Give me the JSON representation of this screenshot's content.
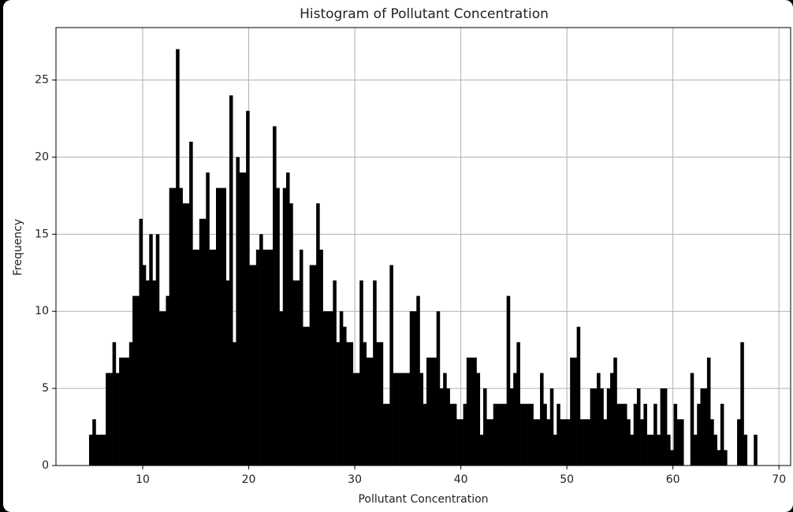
{
  "chart_data": {
    "type": "histogram",
    "title": "Histogram of Pollutant Concentration",
    "xlabel": "Pollutant Concentration",
    "ylabel": "Frequency",
    "color": "#000000",
    "grid": true,
    "xlim": [
      1.82,
      71.1
    ],
    "ylim": [
      0,
      28.4
    ],
    "xticks": [
      10,
      20,
      30,
      40,
      50,
      60,
      70
    ],
    "yticks": [
      0,
      5,
      10,
      15,
      20,
      25
    ],
    "bins": [
      4.94,
      5.255,
      5.57,
      5.885,
      6.2,
      6.515,
      6.83,
      7.145,
      7.46,
      7.775,
      8.09,
      8.405,
      8.72,
      9.035,
      9.35,
      9.665,
      9.98,
      10.295,
      10.61,
      10.925,
      11.24,
      11.555,
      11.87,
      12.185,
      12.5,
      12.815,
      13.13,
      13.445,
      13.76,
      14.075,
      14.39,
      14.705,
      15.02,
      15.335,
      15.65,
      15.965,
      16.28,
      16.595,
      16.91,
      17.225,
      17.54,
      17.855,
      18.17,
      18.485,
      18.8,
      19.115,
      19.43,
      19.745,
      20.06,
      20.375,
      20.69,
      21.005,
      21.32,
      21.635,
      21.95,
      22.265,
      22.58,
      22.895,
      23.21,
      23.525,
      23.84,
      24.155,
      24.47,
      24.785,
      25.1,
      25.415,
      25.73,
      26.045,
      26.36,
      26.675,
      26.99,
      27.305,
      27.62,
      27.935,
      28.25,
      28.565,
      28.88,
      29.195,
      29.51,
      29.825,
      30.14,
      30.455,
      30.77,
      31.085,
      31.4,
      31.715,
      32.03,
      32.345,
      32.66,
      32.975,
      33.29,
      33.605,
      33.92,
      34.235,
      34.55,
      34.865,
      35.18,
      35.495,
      35.81,
      36.125,
      36.44,
      36.755,
      37.07,
      37.385,
      37.7,
      38.015,
      38.33,
      38.645,
      38.96,
      39.275,
      39.59,
      39.905,
      40.22,
      40.535,
      40.85,
      41.165,
      41.48,
      41.795,
      42.11,
      42.425,
      42.74,
      43.055,
      43.37,
      43.685,
      44,
      44.315,
      44.63,
      44.945,
      45.26,
      45.575,
      45.89,
      46.205,
      46.52,
      46.835,
      47.15,
      47.465,
      47.78,
      48.095,
      48.41,
      48.725,
      49.04,
      49.355,
      49.67,
      49.985,
      50.3,
      50.615,
      50.93,
      51.245,
      51.56,
      51.875,
      52.19,
      52.505,
      52.82,
      53.135,
      53.45,
      53.765,
      54.08,
      54.395,
      54.71,
      55.025,
      55.34,
      55.655,
      55.97,
      56.285,
      56.6,
      56.915,
      57.23,
      57.545,
      57.86,
      58.175,
      58.49,
      58.805,
      59.12,
      59.435,
      59.75,
      60.065,
      60.38,
      60.695,
      61.01,
      61.325,
      61.64,
      61.955,
      62.27,
      62.585,
      62.9,
      63.215,
      63.53,
      63.845,
      64.16,
      64.475,
      64.79,
      65.105,
      65.42,
      65.735,
      66.05,
      66.365,
      66.68,
      66.995,
      67.31,
      67.625,
      67.94
    ],
    "counts": [
      2,
      3,
      2,
      2,
      2,
      6,
      6,
      8,
      6,
      7,
      7,
      7,
      8,
      11,
      11,
      16,
      13,
      12,
      15,
      12,
      15,
      10,
      10,
      11,
      18,
      18,
      27,
      18,
      17,
      17,
      21,
      14,
      14,
      16,
      16,
      19,
      14,
      14,
      18,
      18,
      18,
      12,
      24,
      8,
      20,
      19,
      19,
      23,
      13,
      13,
      14,
      15,
      14,
      14,
      14,
      22,
      18,
      10,
      18,
      19,
      17,
      12,
      12,
      14,
      9,
      9,
      13,
      13,
      17,
      14,
      10,
      10,
      10,
      12,
      8,
      10,
      9,
      8,
      8,
      6,
      6,
      12,
      8,
      7,
      7,
      12,
      8,
      8,
      4,
      4,
      13,
      6,
      6,
      6,
      6,
      6,
      10,
      10,
      11,
      6,
      4,
      7,
      7,
      7,
      10,
      5,
      6,
      5,
      4,
      4,
      3,
      3,
      4,
      7,
      7,
      7,
      6,
      2,
      5,
      3,
      3,
      4,
      4,
      4,
      4,
      11,
      5,
      6,
      8,
      4,
      4,
      4,
      4,
      3,
      3,
      6,
      4,
      3,
      5,
      2,
      4,
      3,
      3,
      3,
      7,
      7,
      9,
      3,
      3,
      3,
      5,
      5,
      6,
      5,
      3,
      5,
      6,
      7,
      4,
      4,
      4,
      3,
      2,
      4,
      5,
      3,
      4,
      2,
      2,
      4,
      2,
      5,
      5,
      2,
      1,
      4,
      3,
      3,
      0,
      0,
      6,
      2,
      4,
      5,
      5,
      7,
      3,
      2,
      1,
      4,
      1,
      0,
      0,
      0,
      3,
      8,
      2,
      0,
      0,
      2
    ]
  }
}
